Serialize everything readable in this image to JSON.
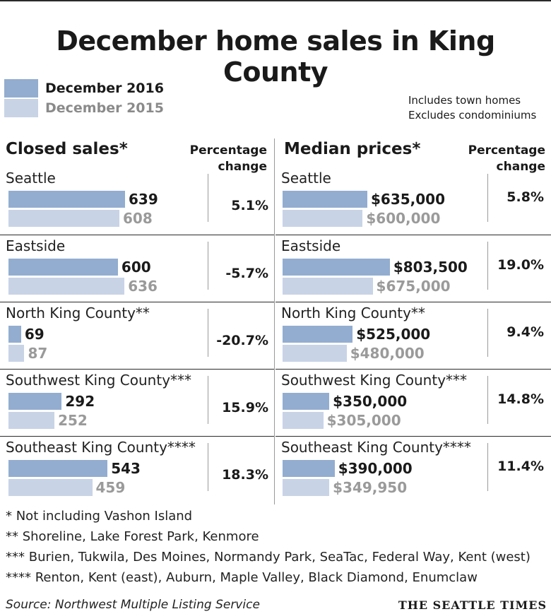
{
  "colors": {
    "current": "#93add0",
    "previous": "#c8d3e6"
  },
  "title": "December home sales in King County",
  "legend": {
    "current": "December 2016",
    "previous": "December 2015"
  },
  "notes": [
    "Includes town homes",
    "Excludes condominiums"
  ],
  "sections": {
    "closed_sales": {
      "heading": "Closed sales*",
      "pct_heading": [
        "Percentage",
        "change"
      ]
    },
    "median_prices": {
      "heading": "Median prices*",
      "pct_heading": [
        "Percentage",
        "change"
      ]
    }
  },
  "chart_data": [
    {
      "type": "bar",
      "title": "Closed sales*",
      "categories": [
        "Seattle",
        "Eastside",
        "North King County**",
        "Southwest King County***",
        "Southeast King County****"
      ],
      "series": [
        {
          "name": "December 2016",
          "values": [
            639,
            600,
            69,
            292,
            543
          ],
          "labels": [
            "639",
            "600",
            "69",
            "292",
            "543"
          ]
        },
        {
          "name": "December 2015",
          "values": [
            608,
            636,
            87,
            252,
            459
          ],
          "labels": [
            "608",
            "636",
            "87",
            "252",
            "459"
          ]
        }
      ],
      "percentage_change": [
        "5.1%",
        "-5.7%",
        "-20.7%",
        "15.9%",
        "18.3%"
      ],
      "xlim": [
        0,
        1000
      ]
    },
    {
      "type": "bar",
      "title": "Median prices*",
      "categories": [
        "Seattle",
        "Eastside",
        "North King County**",
        "Southwest King County***",
        "Southeast King County****"
      ],
      "series": [
        {
          "name": "December 2016",
          "values": [
            635000,
            803500,
            525000,
            350000,
            390000
          ],
          "labels": [
            "$635,000",
            "$803,500",
            "$525,000",
            "$350,000",
            "$390,000"
          ]
        },
        {
          "name": "December 2015",
          "values": [
            600000,
            675000,
            480000,
            305000,
            349950
          ],
          "labels": [
            "$600,000",
            "$675,000",
            "$480,000",
            "$305,000",
            "$349,950"
          ]
        }
      ],
      "percentage_change": [
        "5.8%",
        "19.0%",
        "9.4%",
        "14.8%",
        "11.4%"
      ],
      "xlim": [
        0,
        1000000
      ]
    }
  ],
  "footnotes": [
    "* Not including Vashon Island",
    "**  Shoreline, Lake Forest Park, Kenmore",
    "*** Burien, Tukwila, Des Moines, Normandy Park, SeaTac, Federal Way, Kent (west)",
    "**** Renton, Kent (east), Auburn, Maple Valley, Black Diamond, Enumclaw"
  ],
  "source": "Source: Northwest Multiple Listing Service",
  "brand": "THE SEATTLE TIMES"
}
